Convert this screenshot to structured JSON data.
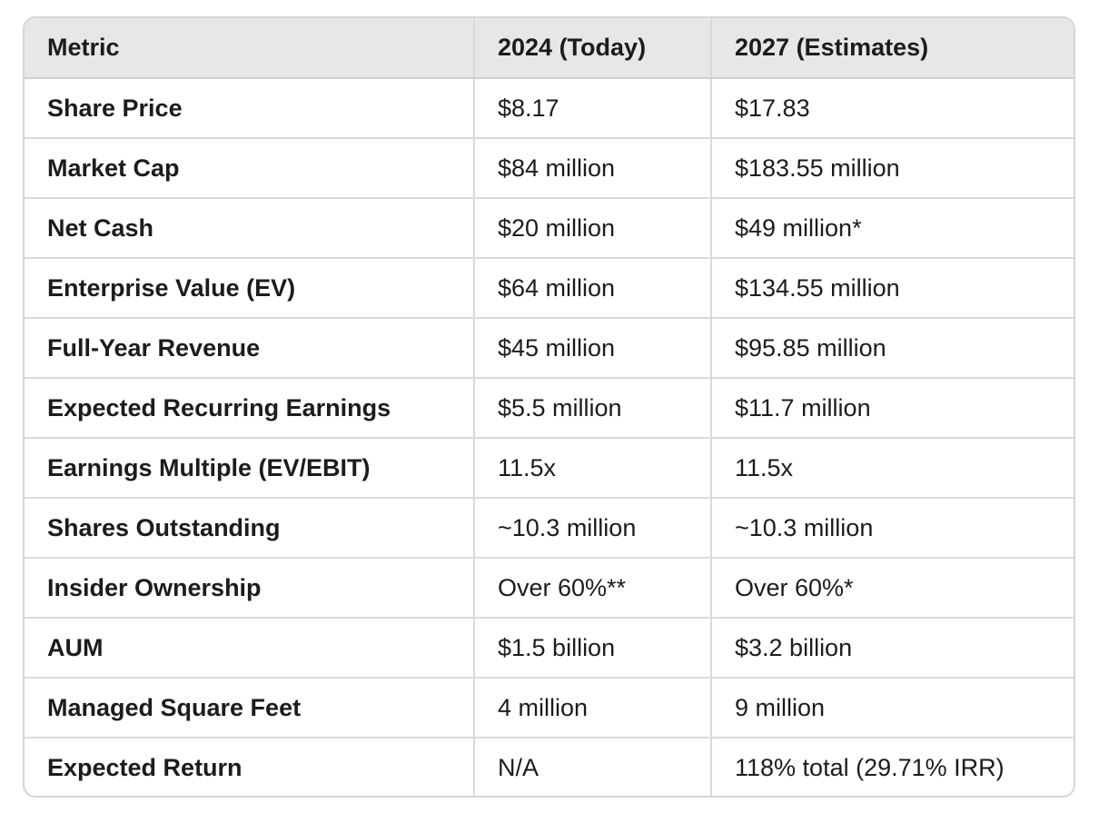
{
  "table": {
    "headers": [
      "Metric",
      "2024 (Today)",
      "2027 (Estimates)"
    ],
    "rows": [
      [
        "Share Price",
        "$8.17",
        "$17.83"
      ],
      [
        "Market Cap",
        "$84 million",
        "$183.55 million"
      ],
      [
        "Net Cash",
        "$20 million",
        "$49 million*"
      ],
      [
        "Enterprise Value (EV)",
        "$64 million",
        "$134.55 million"
      ],
      [
        "Full-Year Revenue",
        "$45 million",
        "$95.85 million"
      ],
      [
        "Expected Recurring Earnings",
        "$5.5 million",
        "$11.7 million"
      ],
      [
        "Earnings Multiple (EV/EBIT)",
        "11.5x",
        "11.5x"
      ],
      [
        "Shares Outstanding",
        "~10.3 million",
        "~10.3 million"
      ],
      [
        "Insider Ownership",
        "Over 60%**",
        "Over 60%*"
      ],
      [
        "AUM",
        "$1.5 billion",
        "$3.2 billion"
      ],
      [
        "Managed Square Feet",
        "4 million",
        "9 million"
      ],
      [
        "Expected Return",
        "N/A",
        "118% total (29.71% IRR)"
      ]
    ]
  }
}
